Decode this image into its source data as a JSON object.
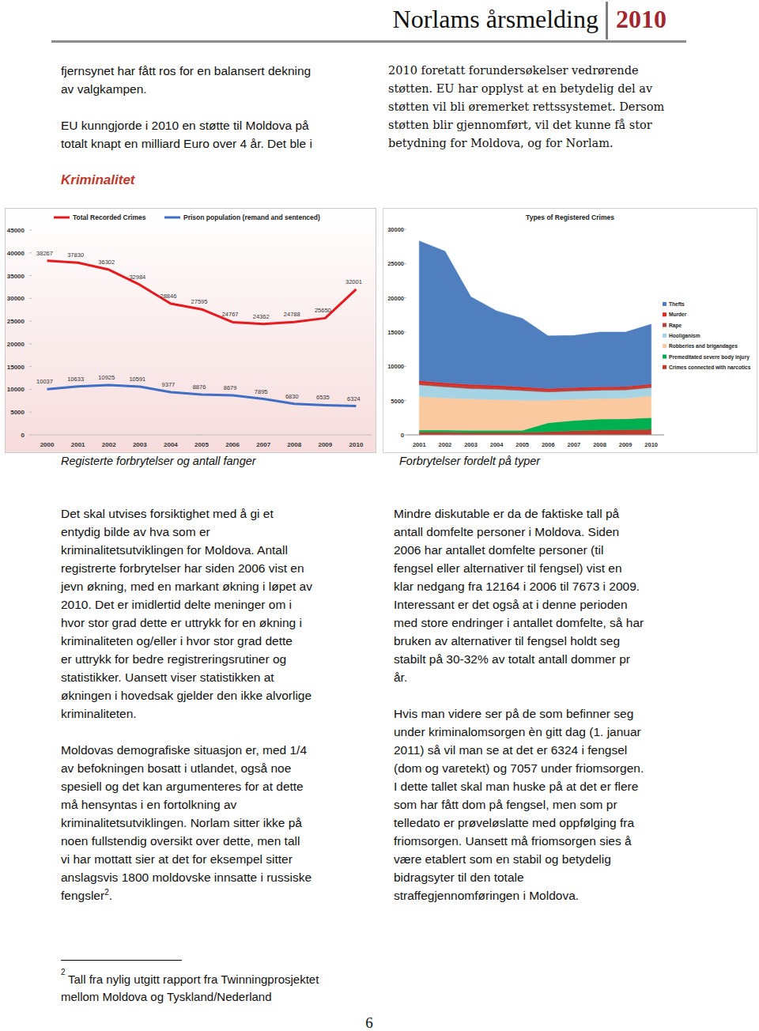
{
  "header": {
    "title": "Norlams årsmelding",
    "year": "2010"
  },
  "intro_left": {
    "paragraphs": [
      [
        "fjernsynet har fått ros for en balansert dekning",
        "av valgkampen."
      ],
      [
        "EU kunngjorde i 2010 en støtte til Moldova på",
        "totalt knapt en milliard Euro over 4 år. Det ble i"
      ]
    ]
  },
  "intro_right": {
    "paragraphs": [
      [
        "2010 foretatt forundersøkelser vedrørende",
        "støtten. EU har opplyst at en betydelig del av",
        "støtten vil bli øremerket rettssystemet. Dersom",
        "støtten blir gjennomført, vil det kunne få stor",
        "betydning for Moldova, og for Norlam."
      ]
    ]
  },
  "section_title": "Kriminalitet",
  "chart_data": [
    {
      "type": "line",
      "categories": [
        "2000",
        "2001",
        "2002",
        "2003",
        "2004",
        "2005",
        "2006",
        "2007",
        "2008",
        "2009",
        "2010"
      ],
      "series": [
        {
          "name": "Total Recorded Crimes",
          "color": "#e8191e",
          "values": [
            38267,
            37830,
            36302,
            32984,
            28846,
            27595,
            24767,
            24362,
            24788,
            25650,
            32001
          ]
        },
        {
          "name": "Prison population (remand and sentenced)",
          "color": "#3f6fc5",
          "values": [
            10037,
            10633,
            10925,
            10591,
            9377,
            8876,
            8679,
            7895,
            6830,
            6535,
            6324
          ]
        }
      ],
      "ylim": [
        0,
        45000
      ],
      "yticks": [
        0,
        5000,
        10000,
        15000,
        20000,
        25000,
        30000,
        35000,
        40000,
        45000
      ],
      "data_labels": true,
      "grid": false,
      "legend": "top"
    },
    {
      "type": "area",
      "stacked": true,
      "title": "Types of Registered Crimes",
      "categories": [
        "2001",
        "2002",
        "2003",
        "2004",
        "2005",
        "2006",
        "2007",
        "2008",
        "2009",
        "2010"
      ],
      "series": [
        {
          "name": "Thefts",
          "color": "#4f7fbf",
          "values": [
            20400,
            19200,
            12800,
            10900,
            10000,
            7700,
            7600,
            8000,
            7950,
            8750
          ]
        },
        {
          "name": "Murder",
          "color": "#e3261e",
          "values": [
            300,
            300,
            300,
            300,
            300,
            250,
            250,
            250,
            250,
            250
          ]
        },
        {
          "name": "Rape",
          "color": "#b2453f",
          "values": [
            300,
            300,
            300,
            250,
            250,
            250,
            250,
            250,
            250,
            250
          ]
        },
        {
          "name": "Hooliganism",
          "color": "#a6d4e4",
          "values": [
            1700,
            1600,
            1500,
            1500,
            1400,
            1200,
            1200,
            1200,
            1200,
            1200
          ]
        },
        {
          "name": "Robberies and brigandages",
          "color": "#fbc9a0",
          "values": [
            4900,
            4700,
            4600,
            4500,
            4400,
            3300,
            3100,
            3000,
            3000,
            3200
          ]
        },
        {
          "name": "Premeditated severe body injury",
          "color": "#00b050",
          "values": [
            300,
            300,
            300,
            300,
            300,
            1300,
            1500,
            1600,
            1600,
            1700
          ]
        },
        {
          "name": "Crimes connected with narcotics",
          "color": "#c0392b",
          "values": [
            400,
            400,
            350,
            350,
            350,
            450,
            600,
            700,
            750,
            800
          ]
        }
      ],
      "ylim": [
        0,
        30000
      ],
      "yticks": [
        0,
        5000,
        10000,
        15000,
        20000,
        25000,
        30000
      ],
      "grid": false,
      "legend": "right"
    }
  ],
  "captions": [
    "Registerte forbrytelser og antall fanger",
    "Forbrytelser fordelt på typer"
  ],
  "body_left": {
    "paragraphs": [
      [
        "Det skal utvises forsiktighet med å gi et",
        "entydig bilde av hva som er",
        "kriminalitetsutviklingen for Moldova. Antall",
        "registrerte forbrytelser har siden 2006 vist en",
        "jevn økning, med en markant økning i løpet av",
        "2010. Det er imidlertid delte meninger om i",
        "hvor stor grad dette er uttrykk for en økning i",
        "kriminaliteten og/eller i hvor stor grad dette",
        "er uttrykk for bedre registreringsrutiner og",
        "statistikker. Uansett viser statistikken at",
        "økningen i hovedsak gjelder den ikke alvorlige",
        "kriminaliteten."
      ],
      [
        "Moldovas demografiske situasjon er, med 1/4",
        "av befokningen bosatt i utlandet, også noe",
        "spesiell og det kan argumenteres for at dette",
        "må hensyntas i en fortolkning av",
        "kriminalitetsutviklingen. Norlam sitter ikke på",
        "noen fullstendig oversikt over dette, men tall",
        "vi har mottatt sier at det for eksempel sitter",
        "anslagsvis 1800 moldovske innsatte i russiske",
        {
          "text": "fengsler",
          "footnote_ref": "2",
          "tail": "."
        }
      ]
    ]
  },
  "body_right": {
    "paragraphs": [
      [
        "Mindre diskutable er da de faktiske tall på",
        "antall domfelte personer i Moldova. Siden",
        "2006 har antallet domfelte personer (til",
        "fengsel eller alternativer til fengsel) vist en",
        "klar nedgang fra 12164 i 2006 til 7673 i 2009.",
        "Interessant er det også at i denne perioden",
        "med store endringer i antallet domfelte, så har",
        "bruken av alternativer til fengsel holdt seg",
        "stabilt på 30-32% av totalt antall dommer pr",
        "år."
      ],
      [
        "Hvis  man videre ser på de som befinner seg",
        "under kriminalomsorgen èn gitt dag (1. januar",
        "2011) så vil man se at det er 6324 i fengsel",
        "(dom og varetekt) og 7057 under friomsorgen.",
        "I dette tallet skal man huske på at det er flere",
        "som har fått dom på fengsel, men som pr",
        "telledato er prøveløslatte med oppfølging fra",
        "friomsorgen. Uansett må friomsorgen sies å",
        "være etablert som en stabil og betydelig",
        "bidragsyter til den totale",
        "straffegjennomføringen i Moldova."
      ]
    ]
  },
  "footnote": {
    "number": "2",
    "lines": [
      "Tall fra nylig utgitt rapport fra Twinningprosjektet",
      "mellom Moldova og Tyskland/Nederland"
    ]
  },
  "page_number": "6"
}
